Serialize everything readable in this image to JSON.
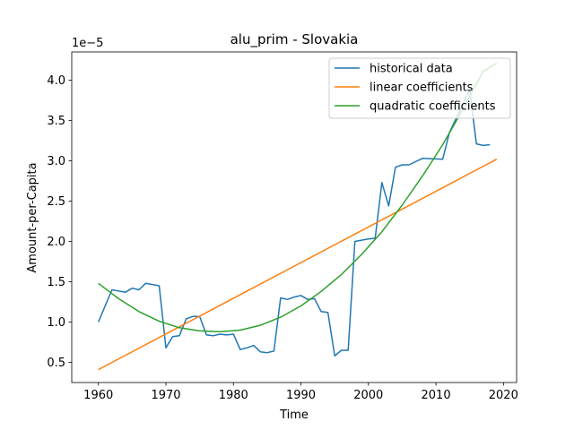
{
  "chart_data": {
    "type": "line",
    "title": "alu_prim - Slovakia",
    "xlabel": "Time",
    "ylabel": "Amount-per-Capita",
    "y_scale_label": "1e−5",
    "xlim": [
      1956.05,
      2021.95
    ],
    "ylim": [
      0.25,
      4.35
    ],
    "x_ticks": [
      1960,
      1970,
      1980,
      1990,
      2000,
      2010,
      2020
    ],
    "x_tick_labels": [
      "1960",
      "1970",
      "1980",
      "1990",
      "2000",
      "2010",
      "2020"
    ],
    "y_ticks": [
      0.5,
      1.0,
      1.5,
      2.0,
      2.5,
      3.0,
      3.5,
      4.0
    ],
    "y_tick_labels": [
      "0.5",
      "1.0",
      "1.5",
      "2.0",
      "2.5",
      "3.0",
      "3.5",
      "4.0"
    ],
    "grid": false,
    "legend_position": "top-right",
    "series": [
      {
        "name": "historical data",
        "color": "#1f77b4",
        "x": [
          1960,
          1962,
          1964,
          1965,
          1966,
          1967,
          1969,
          1970,
          1971,
          1972,
          1973,
          1974,
          1975,
          1976,
          1977,
          1978,
          1979,
          1980,
          1981,
          1982,
          1983,
          1984,
          1985,
          1986,
          1987,
          1988,
          1989,
          1990,
          1991,
          1992,
          1993,
          1994,
          1995,
          1996,
          1997,
          1998,
          2000,
          2001,
          2002,
          2003,
          2004,
          2005,
          2006,
          2008,
          2011,
          2012,
          2015,
          2016,
          2017,
          2018
        ],
        "y": [
          1.0,
          1.4,
          1.37,
          1.42,
          1.4,
          1.48,
          1.45,
          0.68,
          0.82,
          0.83,
          1.04,
          1.07,
          1.07,
          0.84,
          0.83,
          0.85,
          0.84,
          0.85,
          0.66,
          0.68,
          0.71,
          0.63,
          0.62,
          0.64,
          1.3,
          1.28,
          1.31,
          1.33,
          1.28,
          1.29,
          1.13,
          1.12,
          0.58,
          0.65,
          0.65,
          2.0,
          2.03,
          2.04,
          2.73,
          2.44,
          2.92,
          2.95,
          2.95,
          3.03,
          3.02,
          3.35,
          3.88,
          3.21,
          3.19,
          3.2
        ]
      },
      {
        "name": "linear coefficients",
        "color": "#ff7f0e",
        "x": [
          1960,
          2019
        ],
        "y": [
          0.41,
          3.02
        ]
      },
      {
        "name": "quadratic coefficients",
        "color": "#2ca02c",
        "x": [
          1960,
          1963,
          1966,
          1969,
          1972,
          1975,
          1978,
          1981,
          1984,
          1987,
          1990,
          1993,
          1996,
          1999,
          2002,
          2005,
          2008,
          2011,
          2014,
          2017,
          2019
        ],
        "y": [
          1.48,
          1.29,
          1.13,
          1.01,
          0.93,
          0.89,
          0.88,
          0.9,
          0.96,
          1.06,
          1.2,
          1.38,
          1.59,
          1.84,
          2.12,
          2.45,
          2.81,
          3.2,
          3.64,
          4.11,
          4.21
        ]
      }
    ]
  }
}
